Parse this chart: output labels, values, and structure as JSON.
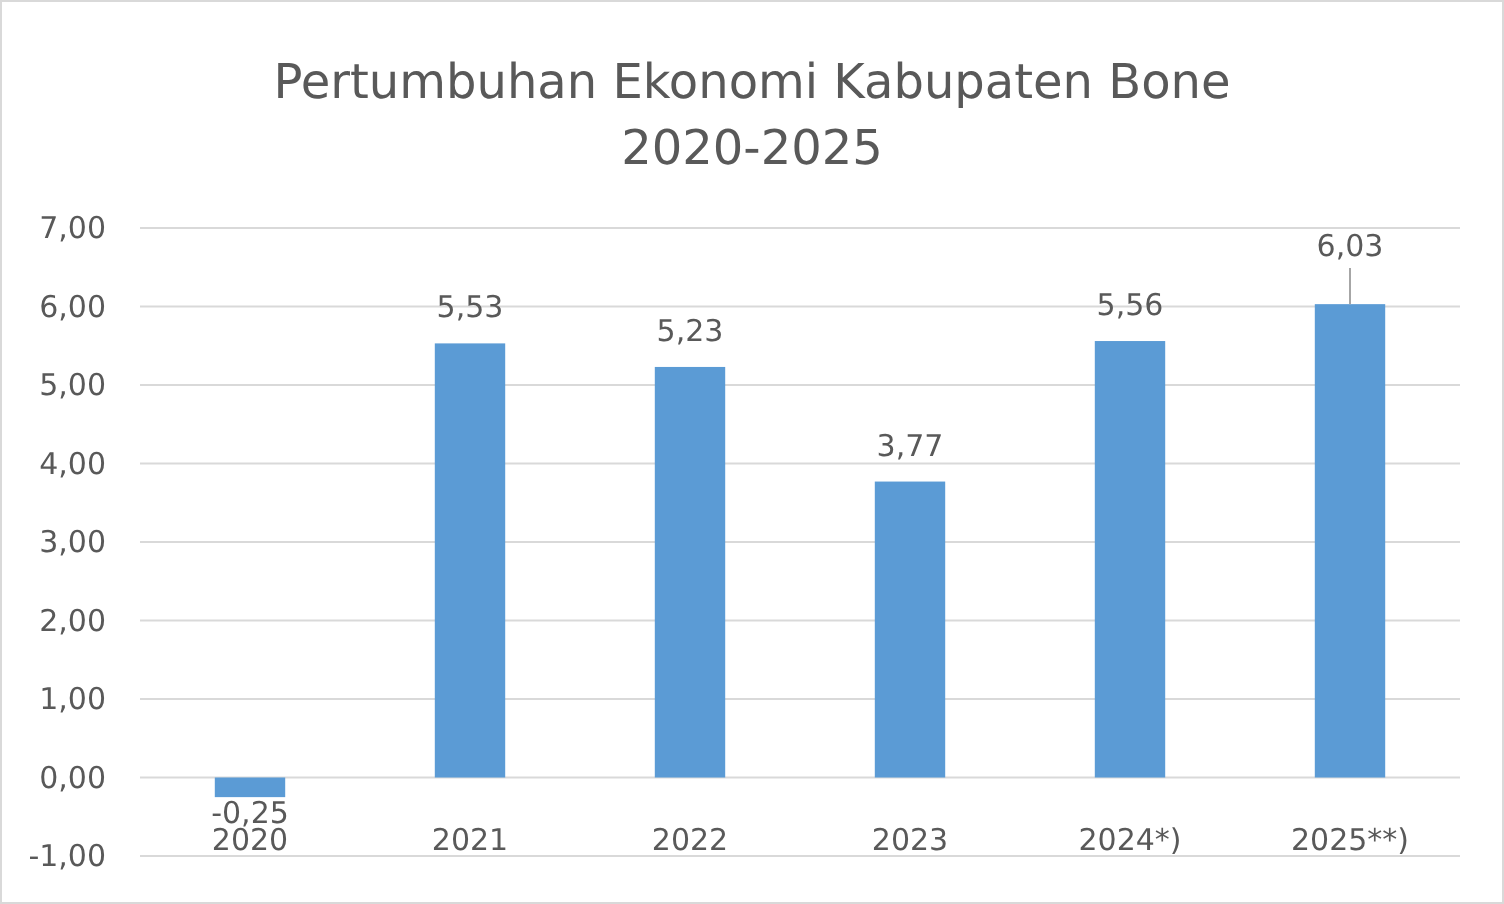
{
  "chart_data": {
    "type": "bar",
    "title": "Pertumbuhan Ekonomi Kabupaten Bone\n2020-2025",
    "categories": [
      "2020",
      "2021",
      "2022",
      "2023",
      "2024*)",
      "2025**)"
    ],
    "values": [
      -0.25,
      5.53,
      5.23,
      3.77,
      5.56,
      6.03
    ],
    "color": "#5b9bd5",
    "value_labels": [
      "-0,25",
      "5,53",
      "5,23",
      "3,77",
      "5,56",
      "6,03"
    ],
    "ylim": [
      -1,
      7
    ],
    "yticks": [
      {
        "value": -1,
        "label": "-1,00"
      },
      {
        "value": 0,
        "label": "0,00"
      },
      {
        "value": 1,
        "label": "1,00"
      },
      {
        "value": 2,
        "label": "2,00"
      },
      {
        "value": 3,
        "label": "3,00"
      },
      {
        "value": 4,
        "label": "4,00"
      },
      {
        "value": 5,
        "label": "5,00"
      },
      {
        "value": 6,
        "label": "6,00"
      },
      {
        "value": 7,
        "label": "7,00"
      }
    ],
    "grid": "y"
  }
}
